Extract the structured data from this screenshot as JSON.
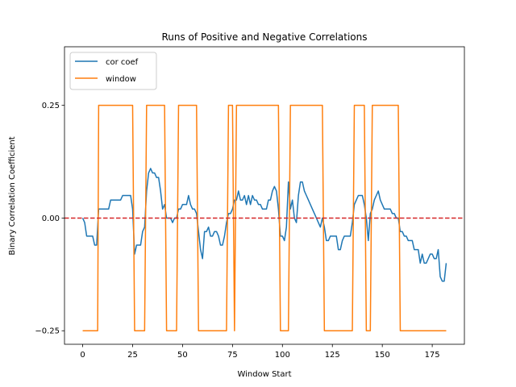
{
  "chart_data": {
    "type": "line",
    "title": "Runs of Positive and Negative Correlations",
    "xlabel": "Window Start",
    "ylabel": "Binary Correlation Coefficient",
    "xlim": [
      -9.1,
      191.1
    ],
    "ylim": [
      -0.28,
      0.38
    ],
    "xticks": [
      0,
      25,
      50,
      75,
      100,
      125,
      150,
      175
    ],
    "xtick_labels": [
      "0",
      "25",
      "50",
      "75",
      "100",
      "125",
      "150",
      "175"
    ],
    "yticks": [
      -0.25,
      0.0,
      0.25
    ],
    "ytick_labels": [
      "−0.25",
      "0.00",
      "0.25"
    ],
    "legend": {
      "position": "upper-left",
      "entries": [
        "cor coef",
        "window"
      ]
    },
    "reference_line": {
      "y": 0.0,
      "color": "#d62728",
      "style": "dashed"
    },
    "series": [
      {
        "name": "cor coef",
        "color": "#1f77b4",
        "points": [
          [
            0,
            0.0
          ],
          [
            1,
            -0.01
          ],
          [
            2,
            -0.04
          ],
          [
            3,
            -0.04
          ],
          [
            4,
            -0.04
          ],
          [
            5,
            -0.04
          ],
          [
            6,
            -0.06
          ],
          [
            7,
            -0.06
          ],
          [
            8,
            0.02
          ],
          [
            9,
            0.02
          ],
          [
            10,
            0.02
          ],
          [
            11,
            0.02
          ],
          [
            12,
            0.02
          ],
          [
            13,
            0.02
          ],
          [
            14,
            0.04
          ],
          [
            15,
            0.04
          ],
          [
            16,
            0.04
          ],
          [
            17,
            0.04
          ],
          [
            18,
            0.04
          ],
          [
            19,
            0.04
          ],
          [
            20,
            0.05
          ],
          [
            21,
            0.05
          ],
          [
            22,
            0.05
          ],
          [
            23,
            0.05
          ],
          [
            24,
            0.05
          ],
          [
            25,
            0.02
          ],
          [
            26,
            -0.08
          ],
          [
            27,
            -0.06
          ],
          [
            28,
            -0.06
          ],
          [
            29,
            -0.06
          ],
          [
            30,
            -0.03
          ],
          [
            31,
            -0.02
          ],
          [
            32,
            0.06
          ],
          [
            33,
            0.1
          ],
          [
            34,
            0.11
          ],
          [
            35,
            0.1
          ],
          [
            36,
            0.1
          ],
          [
            37,
            0.09
          ],
          [
            38,
            0.09
          ],
          [
            39,
            0.06
          ],
          [
            40,
            0.02
          ],
          [
            41,
            0.03
          ],
          [
            42,
            0.0
          ],
          [
            43,
            0.0
          ],
          [
            44,
            0.0
          ],
          [
            45,
            -0.01
          ],
          [
            46,
            0.0
          ],
          [
            47,
            0.0
          ],
          [
            48,
            0.02
          ],
          [
            49,
            0.02
          ],
          [
            50,
            0.03
          ],
          [
            51,
            0.03
          ],
          [
            52,
            0.03
          ],
          [
            53,
            0.05
          ],
          [
            54,
            0.03
          ],
          [
            55,
            0.02
          ],
          [
            56,
            0.02
          ],
          [
            57,
            0.01
          ],
          [
            58,
            -0.03
          ],
          [
            59,
            -0.07
          ],
          [
            60,
            -0.09
          ],
          [
            61,
            -0.03
          ],
          [
            62,
            -0.03
          ],
          [
            63,
            -0.02
          ],
          [
            64,
            -0.04
          ],
          [
            65,
            -0.04
          ],
          [
            66,
            -0.03
          ],
          [
            67,
            -0.03
          ],
          [
            68,
            -0.04
          ],
          [
            69,
            -0.06
          ],
          [
            70,
            -0.06
          ],
          [
            71,
            -0.04
          ],
          [
            72,
            -0.01
          ],
          [
            73,
            0.01
          ],
          [
            74,
            0.01
          ],
          [
            75,
            0.02
          ],
          [
            76,
            0.04
          ],
          [
            77,
            0.04
          ],
          [
            78,
            0.06
          ],
          [
            79,
            0.04
          ],
          [
            80,
            0.04
          ],
          [
            81,
            0.05
          ],
          [
            82,
            0.03
          ],
          [
            83,
            0.05
          ],
          [
            84,
            0.03
          ],
          [
            85,
            0.05
          ],
          [
            86,
            0.04
          ],
          [
            87,
            0.04
          ],
          [
            88,
            0.03
          ],
          [
            89,
            0.03
          ],
          [
            90,
            0.02
          ],
          [
            91,
            0.02
          ],
          [
            92,
            0.02
          ],
          [
            93,
            0.04
          ],
          [
            94,
            0.04
          ],
          [
            95,
            0.06
          ],
          [
            96,
            0.07
          ],
          [
            97,
            0.06
          ],
          [
            98,
            0.02
          ],
          [
            99,
            -0.04
          ],
          [
            100,
            -0.04
          ],
          [
            101,
            -0.05
          ],
          [
            102,
            -0.02
          ],
          [
            103,
            0.08
          ],
          [
            104,
            0.02
          ],
          [
            105,
            0.04
          ],
          [
            106,
            0.0
          ],
          [
            107,
            -0.01
          ],
          [
            108,
            0.05
          ],
          [
            109,
            0.08
          ],
          [
            110,
            0.08
          ],
          [
            111,
            0.06
          ],
          [
            112,
            0.05
          ],
          [
            113,
            0.04
          ],
          [
            114,
            0.03
          ],
          [
            115,
            0.02
          ],
          [
            116,
            0.01
          ],
          [
            117,
            0.0
          ],
          [
            118,
            -0.01
          ],
          [
            119,
            -0.02
          ],
          [
            120,
            0.0
          ],
          [
            121,
            -0.02
          ],
          [
            122,
            -0.05
          ],
          [
            123,
            -0.05
          ],
          [
            124,
            -0.04
          ],
          [
            125,
            -0.04
          ],
          [
            126,
            -0.04
          ],
          [
            127,
            -0.04
          ],
          [
            128,
            -0.07
          ],
          [
            129,
            -0.07
          ],
          [
            130,
            -0.05
          ],
          [
            131,
            -0.04
          ],
          [
            132,
            -0.04
          ],
          [
            133,
            -0.04
          ],
          [
            134,
            -0.04
          ],
          [
            135,
            -0.01
          ],
          [
            136,
            0.03
          ],
          [
            137,
            0.04
          ],
          [
            138,
            0.05
          ],
          [
            139,
            0.05
          ],
          [
            140,
            0.05
          ],
          [
            141,
            0.03
          ],
          [
            142,
            0.0
          ],
          [
            143,
            -0.05
          ],
          [
            144,
            0.01
          ],
          [
            145,
            0.02
          ],
          [
            146,
            0.04
          ],
          [
            147,
            0.05
          ],
          [
            148,
            0.06
          ],
          [
            149,
            0.04
          ],
          [
            150,
            0.03
          ],
          [
            151,
            0.02
          ],
          [
            152,
            0.02
          ],
          [
            153,
            0.02
          ],
          [
            154,
            0.02
          ],
          [
            155,
            0.01
          ],
          [
            156,
            0.01
          ],
          [
            157,
            0.0
          ],
          [
            158,
            0.0
          ],
          [
            159,
            -0.03
          ],
          [
            160,
            -0.03
          ],
          [
            161,
            -0.04
          ],
          [
            162,
            -0.04
          ],
          [
            163,
            -0.05
          ],
          [
            164,
            -0.05
          ],
          [
            165,
            -0.05
          ],
          [
            166,
            -0.07
          ],
          [
            167,
            -0.07
          ],
          [
            168,
            -0.07
          ],
          [
            169,
            -0.1
          ],
          [
            170,
            -0.08
          ],
          [
            171,
            -0.1
          ],
          [
            172,
            -0.1
          ],
          [
            173,
            -0.09
          ],
          [
            174,
            -0.08
          ],
          [
            175,
            -0.08
          ],
          [
            176,
            -0.09
          ],
          [
            177,
            -0.09
          ],
          [
            178,
            -0.07
          ],
          [
            179,
            -0.13
          ],
          [
            180,
            -0.14
          ],
          [
            181,
            -0.14
          ],
          [
            182,
            -0.1
          ]
        ]
      },
      {
        "name": "window",
        "color": "#ff7f0e",
        "points": [
          [
            0,
            -0.25
          ],
          [
            7.5,
            -0.25
          ],
          [
            8,
            0.25
          ],
          [
            25,
            0.25
          ],
          [
            26,
            -0.25
          ],
          [
            31,
            -0.25
          ],
          [
            32,
            0.25
          ],
          [
            41,
            0.25
          ],
          [
            42,
            -0.25
          ],
          [
            47,
            -0.25
          ],
          [
            48,
            0.25
          ],
          [
            57,
            0.25
          ],
          [
            58,
            -0.25
          ],
          [
            72,
            -0.25
          ],
          [
            73,
            0.25
          ],
          [
            75,
            0.25
          ],
          [
            76,
            -0.25
          ],
          [
            77,
            0.25
          ],
          [
            98,
            0.25
          ],
          [
            99,
            -0.25
          ],
          [
            103,
            -0.25
          ],
          [
            104,
            0.25
          ],
          [
            120,
            0.25
          ],
          [
            121,
            -0.25
          ],
          [
            135,
            -0.25
          ],
          [
            136,
            0.25
          ],
          [
            141,
            0.25
          ],
          [
            142,
            -0.25
          ],
          [
            144,
            -0.25
          ],
          [
            145,
            0.25
          ],
          [
            158,
            0.25
          ],
          [
            159,
            -0.25
          ],
          [
            182,
            -0.25
          ]
        ]
      }
    ]
  }
}
